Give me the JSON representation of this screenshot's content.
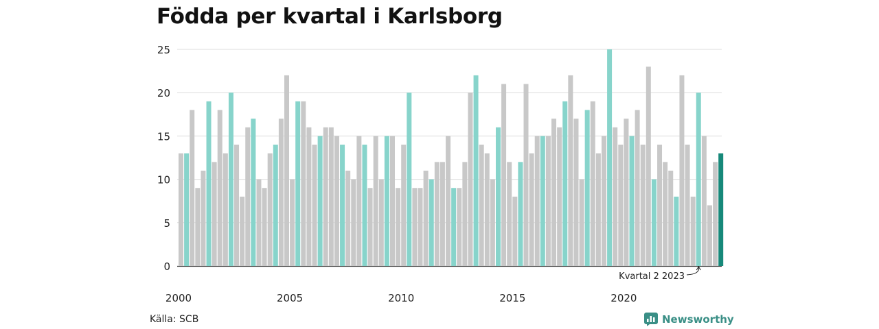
{
  "title": "Födda per kvartal i Karlsborg",
  "source": "Källa: SCB",
  "brand": "Newsworthy",
  "colors": {
    "grey": "#c8c8c8",
    "teal": "#87d4cb",
    "highlight": "#17897a"
  },
  "chart_data": {
    "type": "bar",
    "title": "Födda per kvartal i Karlsborg",
    "xlabel": "",
    "ylabel": "",
    "ylim": [
      0,
      25
    ],
    "yticks": [
      0,
      5,
      10,
      15,
      20,
      25
    ],
    "xtick_labels": [
      "2000",
      "2005",
      "2010",
      "2015",
      "2020"
    ],
    "grid": true,
    "start": "2000 Q1",
    "quarter_2_color": "teal",
    "highlight_color": "highlight",
    "values": [
      13,
      13,
      18,
      9,
      11,
      19,
      12,
      18,
      13,
      20,
      14,
      8,
      16,
      17,
      10,
      9,
      13,
      14,
      17,
      22,
      10,
      19,
      19,
      16,
      14,
      15,
      16,
      16,
      15,
      14,
      11,
      10,
      15,
      14,
      9,
      15,
      10,
      15,
      15,
      9,
      14,
      20,
      9,
      9,
      11,
      10,
      12,
      12,
      15,
      9,
      9,
      12,
      20,
      22,
      14,
      13,
      10,
      16,
      21,
      12,
      8,
      12,
      21,
      13,
      15,
      15,
      15,
      17,
      16,
      19,
      22,
      17,
      10,
      18,
      19,
      13,
      15,
      25,
      16,
      14,
      17,
      15,
      18,
      14,
      23,
      10,
      14,
      12,
      11,
      8,
      22,
      14,
      8,
      20,
      15,
      7,
      12,
      13
    ],
    "annotation": {
      "text": "Kvartal 2 2023",
      "target": "2023 Q2"
    }
  }
}
